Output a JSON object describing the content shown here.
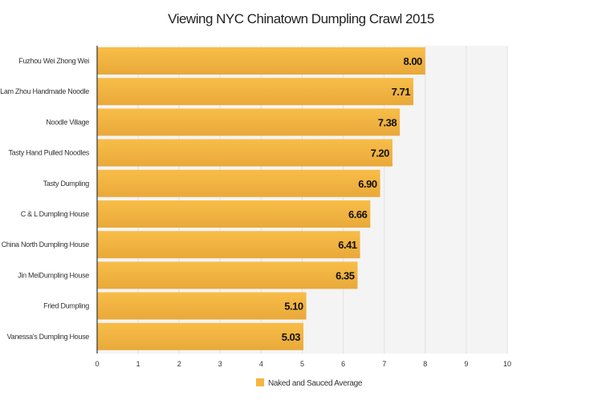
{
  "chart_data": {
    "type": "bar",
    "orientation": "horizontal",
    "title": "Viewing NYC Chinatown Dumpling Crawl 2015",
    "categories": [
      "Fuzhou Wei Zhong Wei",
      "Lam Zhou Handmade Noodle",
      "Noodle Village",
      "Tasty Hand Pulled Noodles",
      "Tasty Dumpling",
      "C & L Dumpling House",
      "China North Dumpling House",
      "Jin MeiDumpling House",
      "Fried Dumpling",
      "Vanessa's Dumpling House"
    ],
    "series": [
      {
        "name": "Naked and Sauced Average",
        "values": [
          8.0,
          7.71,
          7.38,
          7.2,
          6.9,
          6.66,
          6.41,
          6.35,
          5.1,
          5.03
        ],
        "labels": [
          "8.00",
          "7.71",
          "7.38",
          "7.20",
          "6.90",
          "6.66",
          "6.41",
          "6.35",
          "5.10",
          "5.03"
        ],
        "color": "#f5b642"
      }
    ],
    "xlim": [
      0,
      10
    ],
    "xticks": [
      "0",
      "1",
      "2",
      "3",
      "4",
      "5",
      "6",
      "7",
      "8",
      "9",
      "10"
    ],
    "grid": true,
    "legend": "bottom",
    "xlabel": "",
    "ylabel": ""
  }
}
